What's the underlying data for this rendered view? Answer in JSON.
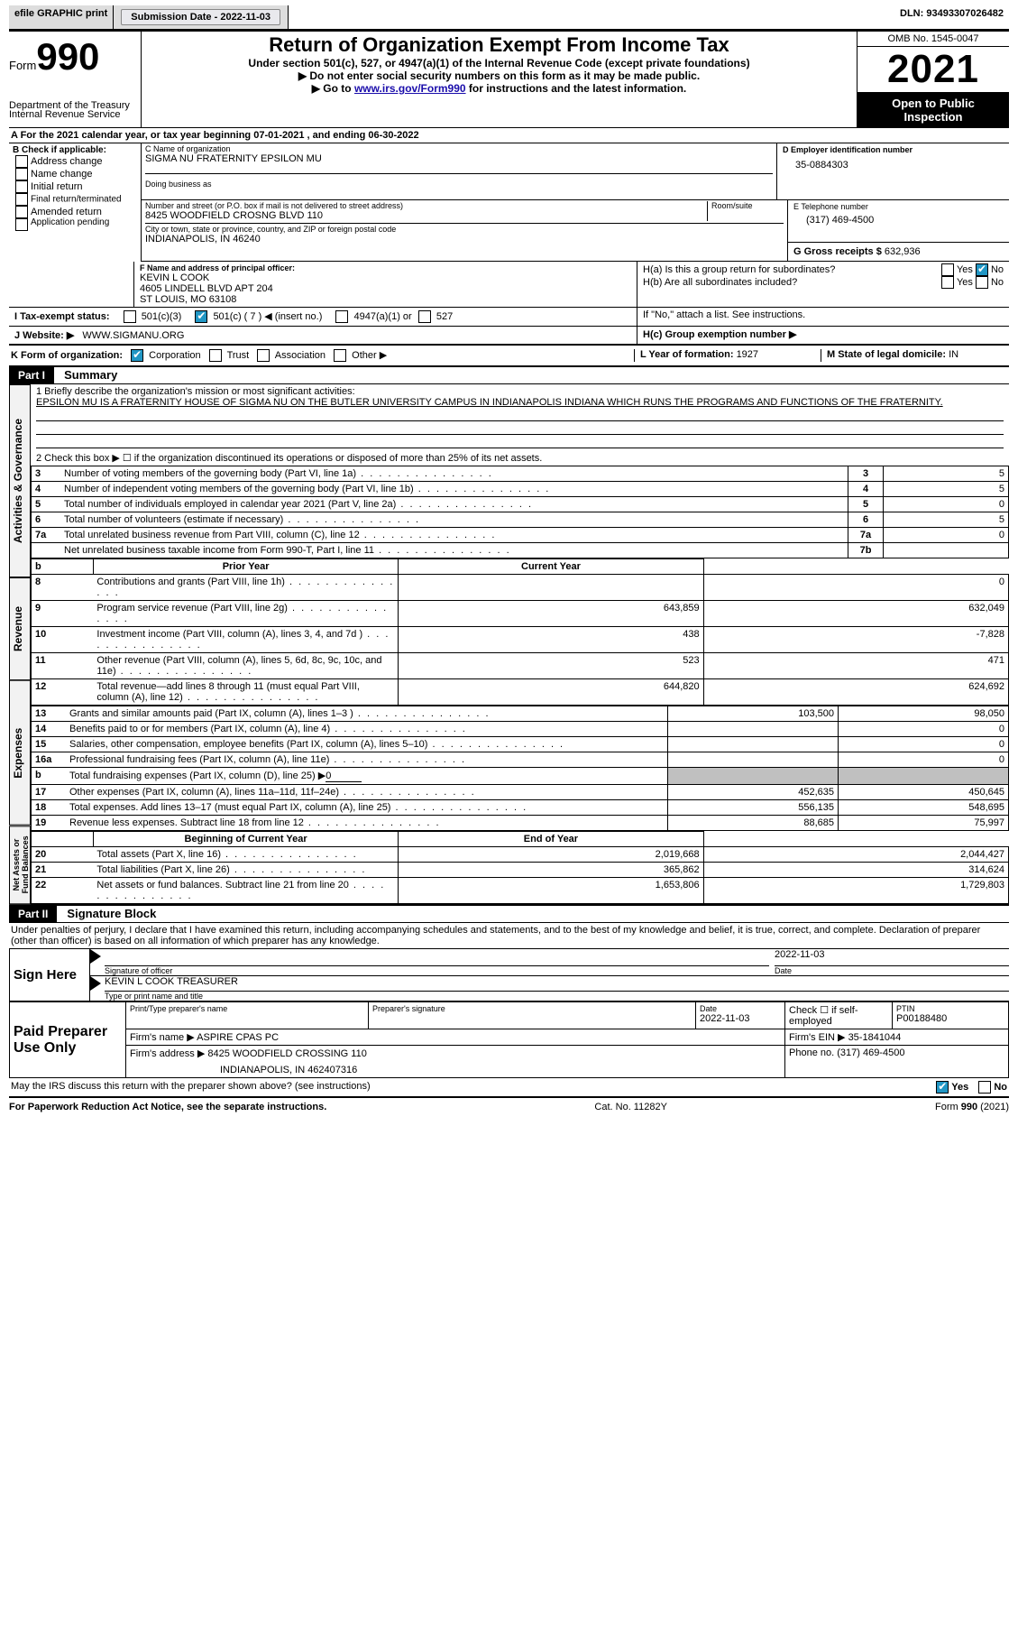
{
  "topbar": {
    "efile": "efile GRAPHIC print",
    "submission_label": "Submission Date - ",
    "submission_date": "2022-11-03",
    "dln_label": "DLN: ",
    "dln": "93493307026482"
  },
  "header": {
    "form_word": "Form",
    "form_num": "990",
    "title": "Return of Organization Exempt From Income Tax",
    "subtitle": "Under section 501(c), 527, or 4947(a)(1) of the Internal Revenue Code (except private foundations)",
    "line2": "▶ Do not enter social security numbers on this form as it may be made public.",
    "line3_pre": "▶ Go to ",
    "line3_link": "www.irs.gov/Form990",
    "line3_post": " for instructions and the latest information.",
    "dept": "Department of the Treasury",
    "irs": "Internal Revenue Service",
    "omb_label": "OMB No. 1545-0047",
    "year": "2021",
    "public1": "Open to Public",
    "public2": "Inspection"
  },
  "A": {
    "text_pre": "A For the 2021 calendar year, or tax year beginning ",
    "begin": "07-01-2021",
    "mid": " , and ending ",
    "end": "06-30-2022"
  },
  "B": {
    "label": "B Check if applicable:",
    "opts": [
      "Address change",
      "Name change",
      "Initial return",
      "Final return/terminated",
      "Amended return",
      "Application pending"
    ]
  },
  "C": {
    "name_label": "C Name of organization",
    "name": "SIGMA NU FRATERNITY EPSILON MU",
    "dba_label": "Doing business as",
    "dba": "",
    "street_label": "Number and street (or P.O. box if mail is not delivered to street address)",
    "room_label": "Room/suite",
    "street": "8425 WOODFIELD CROSNG BLVD 110",
    "city_label": "City or town, state or province, country, and ZIP or foreign postal code",
    "city": "INDIANAPOLIS, IN  46240"
  },
  "D": {
    "label": "D Employer identification number",
    "value": "35-0884303"
  },
  "E": {
    "label": "E Telephone number",
    "value": "(317) 469-4500"
  },
  "G": {
    "label": "G Gross receipts $ ",
    "value": "632,936"
  },
  "F": {
    "label": "F  Name and address of principal officer:",
    "name": "KEVIN L COOK",
    "addr1": "4605 LINDELL BLVD APT 204",
    "addr2": "ST LOUIS, MO  63108"
  },
  "H": {
    "a": "H(a)  Is this a group return for subordinates?",
    "b": "H(b)  Are all subordinates included?",
    "b_note": "If \"No,\" attach a list. See instructions.",
    "c": "H(c)  Group exemption number ▶",
    "yes": "Yes",
    "no": "No"
  },
  "I": {
    "label": "I   Tax-exempt status:",
    "o1": "501(c)(3)",
    "o2": "501(c) ( 7 ) ◀ (insert no.)",
    "o3": "4947(a)(1) or",
    "o4": "527"
  },
  "J": {
    "label": "J   Website: ▶",
    "value": "WWW.SIGMANU.ORG"
  },
  "K": {
    "label": "K Form of organization:",
    "o1": "Corporation",
    "o2": "Trust",
    "o3": "Association",
    "o4": "Other ▶"
  },
  "L": {
    "label": "L Year of formation: ",
    "value": "1927"
  },
  "M": {
    "label": "M State of legal domicile: ",
    "value": "IN"
  },
  "part1": {
    "bar": "Part I",
    "title": "Summary"
  },
  "summary": {
    "line1_label": "1  Briefly describe the organization's mission or most significant activities:",
    "line1_text": "EPSILON MU IS A FRATERNITY HOUSE OF SIGMA NU ON THE BUTLER UNIVERSITY CAMPUS IN INDIANAPOLIS INDIANA WHICH RUNS THE PROGRAMS AND FUNCTIONS OF THE FRATERNITY.",
    "line2": "2   Check this box ▶ ☐  if the organization discontinued its operations or disposed of more than 25% of its net assets.",
    "rows_a": [
      {
        "n": "3",
        "label": "Number of voting members of the governing body (Part VI, line 1a)",
        "box": "3",
        "val": "5"
      },
      {
        "n": "4",
        "label": "Number of independent voting members of the governing body (Part VI, line 1b)",
        "box": "4",
        "val": "5"
      },
      {
        "n": "5",
        "label": "Total number of individuals employed in calendar year 2021 (Part V, line 2a)",
        "box": "5",
        "val": "0"
      },
      {
        "n": "6",
        "label": "Total number of volunteers (estimate if necessary)",
        "box": "6",
        "val": "5"
      },
      {
        "n": "7a",
        "label": "Total unrelated business revenue from Part VIII, column (C), line 12",
        "box": "7a",
        "val": "0"
      },
      {
        "n": "",
        "label": "Net unrelated business taxable income from Form 990-T, Part I, line 11",
        "box": "7b",
        "val": ""
      }
    ],
    "b_label": "b",
    "prior": "Prior Year",
    "current": "Current Year",
    "revenue_rows": [
      {
        "n": "8",
        "label": "Contributions and grants (Part VIII, line 1h)",
        "p": "",
        "c": "0"
      },
      {
        "n": "9",
        "label": "Program service revenue (Part VIII, line 2g)",
        "p": "643,859",
        "c": "632,049"
      },
      {
        "n": "10",
        "label": "Investment income (Part VIII, column (A), lines 3, 4, and 7d )",
        "p": "438",
        "c": "-7,828"
      },
      {
        "n": "11",
        "label": "Other revenue (Part VIII, column (A), lines 5, 6d, 8c, 9c, 10c, and 11e)",
        "p": "523",
        "c": "471"
      },
      {
        "n": "12",
        "label": "Total revenue—add lines 8 through 11 (must equal Part VIII, column (A), line 12)",
        "p": "644,820",
        "c": "624,692"
      }
    ],
    "expense_rows": [
      {
        "n": "13",
        "label": "Grants and similar amounts paid (Part IX, column (A), lines 1–3 )",
        "p": "103,500",
        "c": "98,050"
      },
      {
        "n": "14",
        "label": "Benefits paid to or for members (Part IX, column (A), line 4)",
        "p": "",
        "c": "0"
      },
      {
        "n": "15",
        "label": "Salaries, other compensation, employee benefits (Part IX, column (A), lines 5–10)",
        "p": "",
        "c": "0"
      },
      {
        "n": "16a",
        "label": "Professional fundraising fees (Part IX, column (A), line 11e)",
        "p": "",
        "c": "0"
      },
      {
        "n": "b",
        "label": "Total fundraising expenses (Part IX, column (D), line 25) ▶",
        "p": "grey",
        "c": "grey",
        "extra": "0"
      },
      {
        "n": "17",
        "label": "Other expenses (Part IX, column (A), lines 11a–11d, 11f–24e)",
        "p": "452,635",
        "c": "450,645"
      },
      {
        "n": "18",
        "label": "Total expenses. Add lines 13–17 (must equal Part IX, column (A), line 25)",
        "p": "556,135",
        "c": "548,695"
      },
      {
        "n": "19",
        "label": "Revenue less expenses. Subtract line 18 from line 12",
        "p": "88,685",
        "c": "75,997"
      }
    ],
    "beg": "Beginning of Current Year",
    "end": "End of Year",
    "net_rows": [
      {
        "n": "20",
        "label": "Total assets (Part X, line 16)",
        "p": "2,019,668",
        "c": "2,044,427"
      },
      {
        "n": "21",
        "label": "Total liabilities (Part X, line 26)",
        "p": "365,862",
        "c": "314,624"
      },
      {
        "n": "22",
        "label": "Net assets or fund balances. Subtract line 21 from line 20",
        "p": "1,653,806",
        "c": "1,729,803"
      }
    ],
    "side_act": "Activities & Governance",
    "side_rev": "Revenue",
    "side_exp": "Expenses",
    "side_net": "Net Assets or Fund Balances"
  },
  "part2": {
    "bar": "Part II",
    "title": "Signature Block"
  },
  "sig": {
    "decl": "Under penalties of perjury, I declare that I have examined this return, including accompanying schedules and statements, and to the best of my knowledge and belief, it is true, correct, and complete. Declaration of preparer (other than officer) is based on all information of which preparer has any knowledge.",
    "sign_here": "Sign Here",
    "sig_officer": "Signature of officer",
    "date": "Date",
    "sig_date": "2022-11-03",
    "name_title": "KEVIN L COOK  TREASURER",
    "type_name": "Type or print name and title",
    "paid": "Paid Preparer Use Only",
    "pt_name_label": "Print/Type preparer's name",
    "pt_name": "",
    "pt_sig_label": "Preparer's signature",
    "pt_date_label": "Date",
    "pt_date": "2022-11-03",
    "self_label": "Check ☐ if self-employed",
    "ptin_label": "PTIN",
    "ptin": "P00188480",
    "firm_name_label": "Firm's name    ▶ ",
    "firm_name": "ASPIRE CPAS PC",
    "firm_ein_label": "Firm's EIN ▶ ",
    "firm_ein": "35-1841044",
    "firm_addr_label": "Firm's address ▶ ",
    "firm_addr1": "8425 WOODFIELD CROSSING 110",
    "firm_addr2": "INDIANAPOLIS, IN  462407316",
    "phone_label": "Phone no. ",
    "phone": "(317) 469-4500",
    "may": "May the IRS discuss this return with the preparer shown above? (see instructions)"
  },
  "footer": {
    "left": "For Paperwork Reduction Act Notice, see the separate instructions.",
    "mid": "Cat. No. 11282Y",
    "right": "Form 990 (2021)"
  },
  "checks": {
    "Hno": true,
    "I2": true,
    "Kcorp": true,
    "mayyes": true
  }
}
